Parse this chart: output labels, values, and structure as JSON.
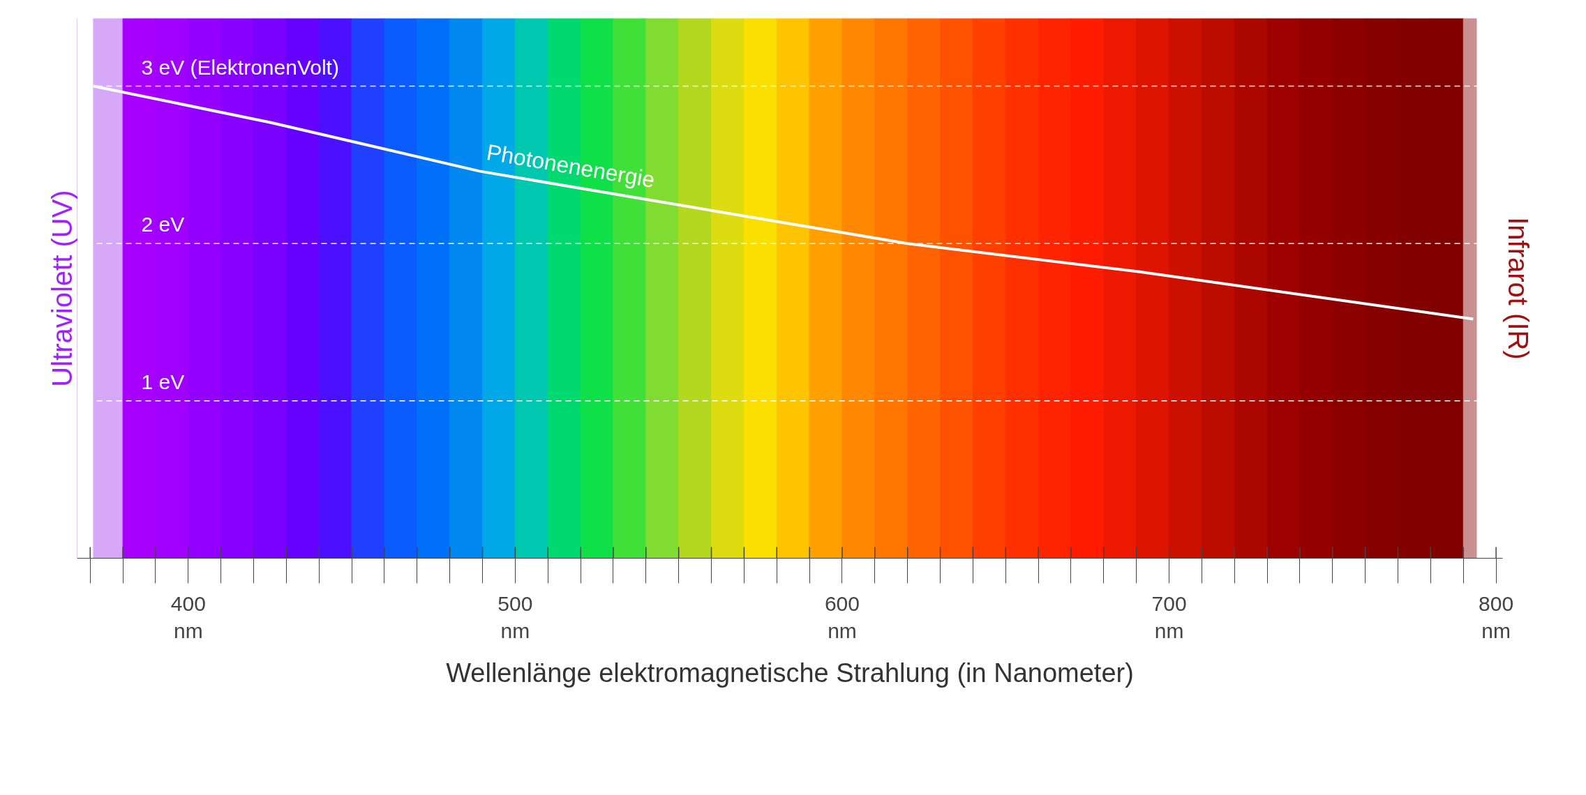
{
  "chart_data": {
    "type": "line",
    "xlabel": "Wellenlänge elektromagnetische Strahlung (in Nanometer)",
    "ylabel": "Ultraviolett (UV)",
    "y2label": "Infrarot (IR)",
    "xlim": [
      366,
      802
    ],
    "ylim": [
      0,
      3.43
    ],
    "xticks": [
      {
        "value": 370,
        "label": null
      },
      {
        "value": 380,
        "label": null
      },
      {
        "value": 390,
        "label": null
      },
      {
        "value": 400,
        "label": "400\nnm"
      },
      {
        "value": 410,
        "label": null
      },
      {
        "value": 420,
        "label": null
      },
      {
        "value": 430,
        "label": null
      },
      {
        "value": 440,
        "label": null
      },
      {
        "value": 450,
        "label": null
      },
      {
        "value": 460,
        "label": null
      },
      {
        "value": 470,
        "label": null
      },
      {
        "value": 480,
        "label": null
      },
      {
        "value": 490,
        "label": null
      },
      {
        "value": 500,
        "label": "500\nnm"
      },
      {
        "value": 510,
        "label": null
      },
      {
        "value": 520,
        "label": null
      },
      {
        "value": 530,
        "label": null
      },
      {
        "value": 540,
        "label": null
      },
      {
        "value": 550,
        "label": null
      },
      {
        "value": 560,
        "label": null
      },
      {
        "value": 570,
        "label": null
      },
      {
        "value": 580,
        "label": null
      },
      {
        "value": 590,
        "label": null
      },
      {
        "value": 600,
        "label": "600\nnm"
      },
      {
        "value": 610,
        "label": null
      },
      {
        "value": 620,
        "label": null
      },
      {
        "value": 630,
        "label": null
      },
      {
        "value": 640,
        "label": null
      },
      {
        "value": 650,
        "label": null
      },
      {
        "value": 660,
        "label": null
      },
      {
        "value": 670,
        "label": null
      },
      {
        "value": 680,
        "label": null
      },
      {
        "value": 690,
        "label": null
      },
      {
        "value": 700,
        "label": "700\nnm"
      },
      {
        "value": 710,
        "label": null
      },
      {
        "value": 720,
        "label": null
      },
      {
        "value": 730,
        "label": null
      },
      {
        "value": 740,
        "label": null
      },
      {
        "value": 750,
        "label": null
      },
      {
        "value": 760,
        "label": null
      },
      {
        "value": 770,
        "label": null
      },
      {
        "value": 780,
        "label": null
      },
      {
        "value": 790,
        "label": null
      },
      {
        "value": 800,
        "label": "800\nnm"
      }
    ],
    "tick_labels": "x",
    "series": [
      {
        "name": "Photonenenergie",
        "color": "#ffffff",
        "x": [
          371,
          425,
          489,
          577,
          620,
          691,
          793
        ],
        "values": [
          3.0,
          2.77,
          2.46,
          2.15,
          2.0,
          1.82,
          1.52
        ]
      }
    ],
    "ref_lines": [
      {
        "axis": "y",
        "value": 3,
        "label": "3 eV (ElektronenVolt)",
        "color": "#ffffff",
        "line_style": "dashed"
      },
      {
        "axis": "y",
        "value": 2,
        "label": "2 eV",
        "color": "#ffffff",
        "line_style": "dashed"
      },
      {
        "axis": "y",
        "value": 1,
        "label": "1 eV",
        "color": "#ffffff",
        "line_style": "dashed"
      }
    ],
    "bands": [
      {
        "axis": "x",
        "from": 371,
        "to": 380,
        "color": "#d8a8f8"
      },
      {
        "axis": "x",
        "from": 380,
        "to": 390,
        "color": "#a800ff"
      },
      {
        "axis": "x",
        "from": 390,
        "to": 400,
        "color": "#a000ff"
      },
      {
        "axis": "x",
        "from": 400,
        "to": 410,
        "color": "#9400ff"
      },
      {
        "axis": "x",
        "from": 410,
        "to": 420,
        "color": "#8800ff"
      },
      {
        "axis": "x",
        "from": 420,
        "to": 430,
        "color": "#7a00ff"
      },
      {
        "axis": "x",
        "from": 430,
        "to": 440,
        "color": "#6600ff"
      },
      {
        "axis": "x",
        "from": 440,
        "to": 450,
        "color": "#4a10ff"
      },
      {
        "axis": "x",
        "from": 450,
        "to": 460,
        "color": "#2040ff"
      },
      {
        "axis": "x",
        "from": 460,
        "to": 470,
        "color": "#0a5cff"
      },
      {
        "axis": "x",
        "from": 470,
        "to": 480,
        "color": "#0070f8"
      },
      {
        "axis": "x",
        "from": 480,
        "to": 490,
        "color": "#0088f0"
      },
      {
        "axis": "x",
        "from": 490,
        "to": 500,
        "color": "#00a8e8"
      },
      {
        "axis": "x",
        "from": 500,
        "to": 510,
        "color": "#00c8b0"
      },
      {
        "axis": "x",
        "from": 510,
        "to": 520,
        "color": "#00d870"
      },
      {
        "axis": "x",
        "from": 520,
        "to": 530,
        "color": "#10e048"
      },
      {
        "axis": "x",
        "from": 530,
        "to": 540,
        "color": "#40e038"
      },
      {
        "axis": "x",
        "from": 540,
        "to": 550,
        "color": "#80dc30"
      },
      {
        "axis": "x",
        "from": 550,
        "to": 560,
        "color": "#b4d820"
      },
      {
        "axis": "x",
        "from": 560,
        "to": 570,
        "color": "#dcdc10"
      },
      {
        "axis": "x",
        "from": 570,
        "to": 580,
        "color": "#fae000"
      },
      {
        "axis": "x",
        "from": 580,
        "to": 590,
        "color": "#ffc400"
      },
      {
        "axis": "x",
        "from": 590,
        "to": 600,
        "color": "#ffa000"
      },
      {
        "axis": "x",
        "from": 600,
        "to": 610,
        "color": "#ff8800"
      },
      {
        "axis": "x",
        "from": 610,
        "to": 620,
        "color": "#ff7600"
      },
      {
        "axis": "x",
        "from": 620,
        "to": 630,
        "color": "#ff6400"
      },
      {
        "axis": "x",
        "from": 630,
        "to": 640,
        "color": "#ff5200"
      },
      {
        "axis": "x",
        "from": 640,
        "to": 650,
        "color": "#ff4000"
      },
      {
        "axis": "x",
        "from": 650,
        "to": 660,
        "color": "#ff3000"
      },
      {
        "axis": "x",
        "from": 660,
        "to": 670,
        "color": "#ff2400"
      },
      {
        "axis": "x",
        "from": 670,
        "to": 680,
        "color": "#ff1c00"
      },
      {
        "axis": "x",
        "from": 680,
        "to": 690,
        "color": "#ec1800"
      },
      {
        "axis": "x",
        "from": 690,
        "to": 700,
        "color": "#dc1400"
      },
      {
        "axis": "x",
        "from": 700,
        "to": 710,
        "color": "#cc1000"
      },
      {
        "axis": "x",
        "from": 710,
        "to": 720,
        "color": "#bc0c00"
      },
      {
        "axis": "x",
        "from": 720,
        "to": 730,
        "color": "#ac0600"
      },
      {
        "axis": "x",
        "from": 730,
        "to": 740,
        "color": "#9e0200"
      },
      {
        "axis": "x",
        "from": 740,
        "to": 750,
        "color": "#940000"
      },
      {
        "axis": "x",
        "from": 750,
        "to": 760,
        "color": "#8c0000"
      },
      {
        "axis": "x",
        "from": 760,
        "to": 770,
        "color": "#860000"
      },
      {
        "axis": "x",
        "from": 770,
        "to": 780,
        "color": "#820000"
      },
      {
        "axis": "x",
        "from": 780,
        "to": 790,
        "color": "#800000"
      },
      {
        "axis": "x",
        "from": 790,
        "to": 794,
        "color": "#c89090"
      }
    ],
    "grid": false,
    "marker": "none",
    "line_style": "solid"
  }
}
